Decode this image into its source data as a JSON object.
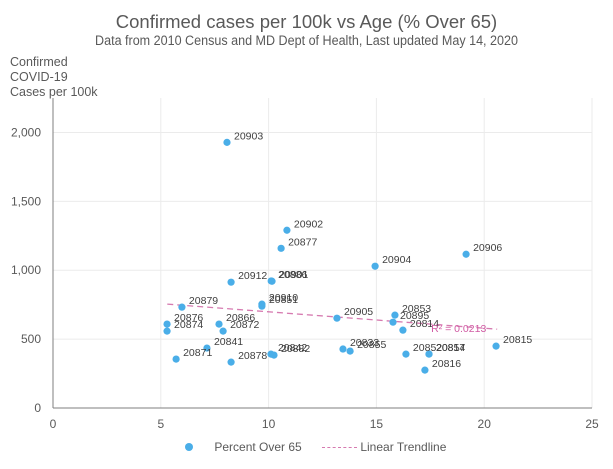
{
  "chart_data": {
    "type": "scatter",
    "title": "Confirmed cases per 100k vs Age (% Over 65)",
    "subtitle": "Data from 2010 Census and MD Dept of Health, Last updated May 14, 2020",
    "xlabel": "",
    "ylabel_lines": [
      "Confirmed",
      "COVID-19",
      "Cases per 100k"
    ],
    "xlim": [
      0,
      25
    ],
    "ylim": [
      0,
      2250
    ],
    "x_ticks": [
      0,
      5,
      10,
      15,
      20,
      25
    ],
    "y_ticks": [
      0,
      500,
      1000,
      1500,
      2000
    ],
    "y_tick_labels": [
      "0",
      "500",
      "1,000",
      "1,500",
      "2,000"
    ],
    "grid": true,
    "colors": {
      "points": "#4aaee8",
      "trendline": "#d67ab0",
      "r2": "#d05aa3"
    },
    "series": [
      {
        "name": "Percent Over 65",
        "points": [
          {
            "label": "20903",
            "x": 8.07,
            "y": 1928
          },
          {
            "label": "20902",
            "x": 10.85,
            "y": 1290
          },
          {
            "label": "20877",
            "x": 10.58,
            "y": 1159
          },
          {
            "label": "20906",
            "x": 19.16,
            "y": 1116
          },
          {
            "label": "20904",
            "x": 14.94,
            "y": 1029
          },
          {
            "label": "20886",
            "x": 10.12,
            "y": 922
          },
          {
            "label": "20912",
            "x": 8.26,
            "y": 913
          },
          {
            "label": "20901",
            "x": 10.16,
            "y": 920
          },
          {
            "label": "20910",
            "x": 9.69,
            "y": 754
          },
          {
            "label": "20851",
            "x": 9.69,
            "y": 739
          },
          {
            "label": "20879",
            "x": 5.98,
            "y": 732
          },
          {
            "label": "20905",
            "x": 13.17,
            "y": 652
          },
          {
            "label": "20853",
            "x": 15.86,
            "y": 674
          },
          {
            "label": "20895",
            "x": 15.77,
            "y": 623
          },
          {
            "label": "20814",
            "x": 16.23,
            "y": 565
          },
          {
            "label": "20876",
            "x": 5.29,
            "y": 609
          },
          {
            "label": "20874",
            "x": 5.29,
            "y": 558
          },
          {
            "label": "20866",
            "x": 7.7,
            "y": 609
          },
          {
            "label": "20872",
            "x": 7.89,
            "y": 558
          },
          {
            "label": "20815",
            "x": 20.55,
            "y": 449
          },
          {
            "label": "20841",
            "x": 7.14,
            "y": 435
          },
          {
            "label": "20842",
            "x": 10.11,
            "y": 391
          },
          {
            "label": "20882",
            "x": 10.25,
            "y": 384
          },
          {
            "label": "20833",
            "x": 13.45,
            "y": 428
          },
          {
            "label": "20855",
            "x": 13.78,
            "y": 413
          },
          {
            "label": "20871",
            "x": 5.71,
            "y": 355
          },
          {
            "label": "20878",
            "x": 8.26,
            "y": 333
          },
          {
            "label": "20852",
            "x": 16.37,
            "y": 391
          },
          {
            "label": "20817",
            "x": 17.44,
            "y": 391
          },
          {
            "label": "20854",
            "x": 17.44,
            "y": 392
          },
          {
            "label": "20816",
            "x": 17.25,
            "y": 275
          }
        ]
      }
    ],
    "trendline": {
      "name": "Linear Trendline",
      "type": "linear",
      "x_start": 5.3,
      "y_start": 754,
      "x_end": 20.6,
      "y_end": 572,
      "r2_label": "R² = 0.0213"
    },
    "legend": {
      "placement": "bottom",
      "entries": [
        "Percent Over 65",
        "Linear Trendline"
      ]
    }
  }
}
